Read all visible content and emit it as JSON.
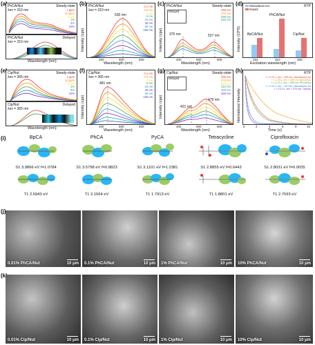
{
  "panels": {
    "a": {
      "label": "(a)",
      "top_title": "PhCA/Nut",
      "top_right": "Steady-state",
      "top_ex": "λex = 310 nm",
      "legend": [
        "1 ppm",
        "10 ppm",
        "0.1%",
        "1%",
        "5%",
        "10%"
      ],
      "bottom_title": "PhCA/Nut",
      "bottom_right": "Delayed",
      "bottom_ex": "λex = 310 nm",
      "xlabel": "Wavelength (nm)",
      "xticks": [
        "400",
        "500",
        "600"
      ]
    },
    "b": {
      "label": "(b)",
      "title": "PhCA/Nut",
      "ex": "λex = 310 nm",
      "peak": "530 nm",
      "legend": [
        "0.1 ms",
        "0.5 ms",
        "1 ms",
        "5 ms",
        "10 ms",
        "30 ms",
        "50 ms",
        "100 ms"
      ],
      "xlabel": "Wavelength (nm)",
      "ylabel": "Intensity (cps)",
      "xticks": [
        "400",
        "500",
        "600"
      ]
    },
    "c": {
      "label": "(c)",
      "title": "PhCA/Nut",
      "right": "Steady-state",
      "legend": [
        "250 nm",
        "270 nm",
        "290 nm",
        "310 nm"
      ],
      "peak1": "375 nm",
      "peak2": "527 nm",
      "inset": "Delayed",
      "xlabel": "Wavelength (nm)",
      "ylabel": "Intensity (cps)",
      "xticks": [
        "400",
        "500",
        "600"
      ]
    },
    "d": {
      "label": "(d)",
      "legend": [
        "Macadamia nut",
        "Doped"
      ],
      "rtp": "RTP",
      "ylabel": "Intensity (CPS)",
      "xlabel": "Excitation wavelength (nm)",
      "groups": [
        {
          "x": "254",
          "name": "BpCA/Nut"
        },
        {
          "x": "310",
          "name": "PhCA/Nut"
        },
        {
          "x": "365",
          "name": "Cip/Nut"
        }
      ]
    },
    "e": {
      "label": "(e)",
      "top_title": "Cip/Nut",
      "top_right": "Steady-state",
      "top_ex": "λex = 365 nm",
      "legend": [
        "1 ppm",
        "10 ppm",
        "0.1%",
        "1%",
        "5%",
        "10%"
      ],
      "bottom_title": "Cip/Nut",
      "bottom_right": "Delayed",
      "bottom_ex": "λex = 365 nm",
      "xlabel": "Wavelength (nm)",
      "xticks": [
        "400",
        "500",
        "600"
      ]
    },
    "f": {
      "label": "(f)",
      "title": "Cip/Nut",
      "ex": "λex = 365 nm",
      "peak": "481 nm",
      "legend": [
        "0.1 ms",
        "0.5 ms",
        "1 ms",
        "5 ms",
        "10 ms",
        "30 ms",
        "50 ms",
        "100 ms"
      ],
      "xlabel": "Wavelength (nm)",
      "ylabel": "Intensity (cps)",
      "xticks": [
        "400",
        "500",
        "600"
      ]
    },
    "g": {
      "label": "(g)",
      "title": "Cip/Nut",
      "right": "Steady-state",
      "legend": [
        "250 nm",
        "270 nm",
        "290 nm",
        "310 nm",
        "330 nm",
        "350 nm"
      ],
      "peak1": "421 nm",
      "peak2": "479 nm",
      "inset": "Delayed",
      "xlabel": "Wavelength (nm)",
      "ylabel": "Intensity (cps)",
      "xticks": [
        "400",
        "500",
        "600"
      ]
    },
    "h": {
      "label": "(h)",
      "rtp": "RTP",
      "legend": [
        "τ = 0.72 s, λex = 280 nm, Macadamia nut",
        "τ = 1.38 s, λex = 260 nm, BpCA/Nut",
        "τ = 0.71 s, λex = 280 nm, PhCA/Nut",
        "τ = 0.13 s, λex = 310 nm, Macadamia nut",
        "τ = 0.12 s, λex = 370 nm, Cip/Nut"
      ],
      "xlabel": "Time (s)",
      "ylabel": "Normalized Intensity",
      "xticks": [
        "0",
        "2",
        "4",
        "6",
        "8",
        "10"
      ]
    }
  },
  "orbitals": {
    "label": "(i)",
    "molecules": [
      {
        "name": "BpCA",
        "s1": "S1 3.9866 eV f=1.0784",
        "t1": "T1 2.5943 eV"
      },
      {
        "name": "PhCA",
        "s1": "S1 3.5798 eV f=0.8823",
        "t1": "T1 2.1564 eV"
      },
      {
        "name": "PyCA",
        "s1": "S1 3.1101 eV f=1.2381",
        "t1": "T1 1.7913 eV"
      },
      {
        "name": "Tetracycline",
        "s1": "S1 2.8855 eV f=0.6443",
        "t1": "T1 1.8801 eV"
      },
      {
        "name": "Ciprofloxacin",
        "s1": "S1 2.8031 eV f=0.0035",
        "t1": "T1 2.7593 eV"
      }
    ]
  },
  "sem": {
    "j": {
      "label": "(j)",
      "images": [
        {
          "caption": "0.01% PhCA/Nut",
          "scale": "10 μm"
        },
        {
          "caption": "0.1% PhCA/Nut",
          "scale": "10 μm"
        },
        {
          "caption": "1% PhCA/Nut",
          "scale": "10 μm"
        },
        {
          "caption": "10% PhCA/Nut",
          "scale": "10 μm"
        }
      ]
    },
    "k": {
      "label": "(k)",
      "images": [
        {
          "caption": "0.01% Cip/Nut",
          "scale": "10 μm"
        },
        {
          "caption": "0.1% Cip/Nut",
          "scale": "10 μm"
        },
        {
          "caption": "1% Cip/Nut",
          "scale": "10 μm"
        },
        {
          "caption": "10% Cip/Nut",
          "scale": "10 μm"
        }
      ]
    }
  },
  "colors": {
    "c1": "#e53935",
    "c2": "#fb8c00",
    "c3": "#fdd835",
    "c4": "#43a047",
    "c5": "#1e88e5",
    "c6": "#8e24aa",
    "c7": "#00acc1",
    "c8": "#3949ab",
    "nut": "#90caf9",
    "doped": "#e57373"
  }
}
